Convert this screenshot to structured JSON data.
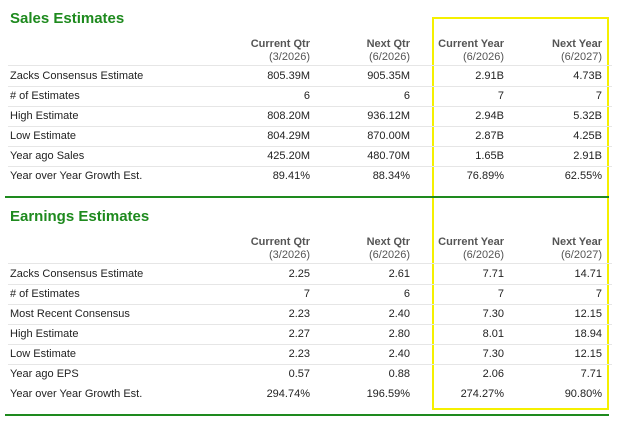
{
  "sections": [
    {
      "title": "Sales Estimates",
      "columns": [
        {
          "name": "Current Qtr",
          "period": "(3/2026)"
        },
        {
          "name": "Next Qtr",
          "period": "(6/2026)"
        },
        {
          "name": "Current Year",
          "period": "(6/2026)"
        },
        {
          "name": "Next Year",
          "period": "(6/2027)"
        }
      ],
      "rows": [
        [
          "Zacks Consensus Estimate",
          "805.39M",
          "905.35M",
          "2.91B",
          "4.73B"
        ],
        [
          "# of Estimates",
          "6",
          "6",
          "7",
          "7"
        ],
        [
          "High Estimate",
          "808.20M",
          "936.12M",
          "2.94B",
          "5.32B"
        ],
        [
          "Low Estimate",
          "804.29M",
          "870.00M",
          "2.87B",
          "4.25B"
        ],
        [
          "Year ago Sales",
          "425.20M",
          "480.70M",
          "1.65B",
          "2.91B"
        ],
        [
          "Year over Year Growth Est.",
          "89.41%",
          "88.34%",
          "76.89%",
          "62.55%"
        ]
      ]
    },
    {
      "title": "Earnings Estimates",
      "columns": [
        {
          "name": "Current Qtr",
          "period": "(3/2026)"
        },
        {
          "name": "Next Qtr",
          "period": "(6/2026)"
        },
        {
          "name": "Current Year",
          "period": "(6/2026)"
        },
        {
          "name": "Next Year",
          "period": "(6/2027)"
        }
      ],
      "rows": [
        [
          "Zacks Consensus Estimate",
          "2.25",
          "2.61",
          "7.71",
          "14.71"
        ],
        [
          "# of Estimates",
          "7",
          "6",
          "7",
          "7"
        ],
        [
          "Most Recent Consensus",
          "2.23",
          "2.40",
          "7.30",
          "12.15"
        ],
        [
          "High Estimate",
          "2.27",
          "2.80",
          "8.01",
          "18.94"
        ],
        [
          "Low Estimate",
          "2.23",
          "2.40",
          "7.30",
          "12.15"
        ],
        [
          "Year ago EPS",
          "0.57",
          "0.88",
          "2.06",
          "7.71"
        ],
        [
          "Year over Year Growth Est.",
          "294.74%",
          "196.59%",
          "274.27%",
          "90.80%"
        ]
      ]
    }
  ]
}
